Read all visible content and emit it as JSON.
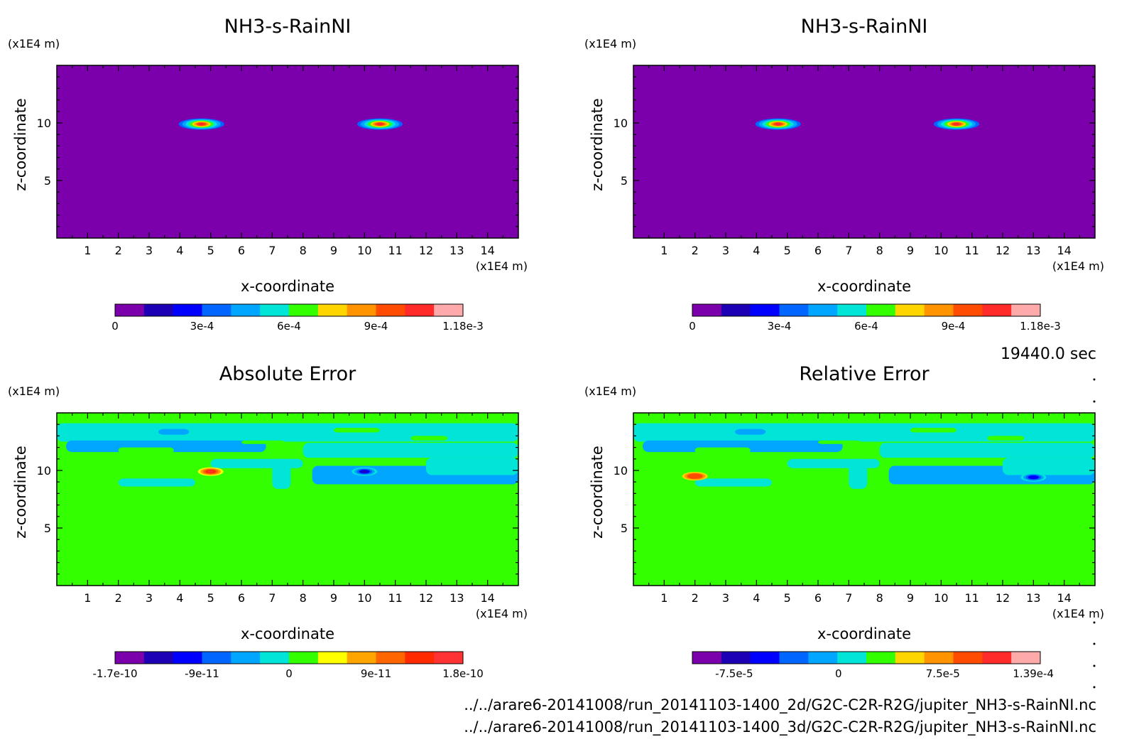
{
  "time_label": "19440.0 sec",
  "file_paths": [
    "../../arare6-20141008/run_20141103-1400_2d/G2C-C2R-R2G/jupiter_NH3-s-RainNI.nc",
    "../../arare6-20141008/run_20141103-1400_3d/G2C-C2R-R2G/jupiter_NH3-s-RainNI.nc"
  ],
  "colors": {
    "seq": [
      "#7b00ac",
      "#1e00b4",
      "#0000ff",
      "#0066ff",
      "#00a6ff",
      "#00e5d8",
      "#33ff00",
      "#ffd500",
      "#ff9400",
      "#ff4c00",
      "#ff2a2a",
      "#ffaaaa"
    ],
    "abs": [
      "#7b00ac",
      "#1e00b4",
      "#0000ff",
      "#0066ff",
      "#00a6ff",
      "#00e5d8",
      "#33ff00",
      "#ffff00",
      "#ffa500",
      "#ff6600",
      "#ff2a00",
      "#ff3333"
    ],
    "rel": [
      "#7b00ac",
      "#1e00b4",
      "#0000ff",
      "#0066ff",
      "#00a6ff",
      "#00e5d8",
      "#33ff00",
      "#ffd500",
      "#ff9400",
      "#ff4c00",
      "#ff2a2a",
      "#ffaaaa"
    ]
  },
  "chart_data": [
    {
      "type": "heatmap",
      "title": "NH3-s-RainNI",
      "xlabel": "x-coordinate",
      "ylabel": "z-coordinate",
      "x_unit": "(x1E4 m)",
      "y_unit": "(x1E4 m)",
      "xlim": [
        0,
        15
      ],
      "ylim": [
        0,
        15
      ],
      "xticks": [
        1,
        2,
        3,
        4,
        5,
        6,
        7,
        8,
        9,
        10,
        11,
        12,
        13,
        14
      ],
      "yticks": [
        5,
        10
      ],
      "colorbar_ticks": [
        "0",
        "3e-4",
        "6e-4",
        "9e-4",
        "1.18e-3"
      ],
      "background_level": 0,
      "features": [
        {
          "x": 4.7,
          "z": 9.9,
          "peak_level": 10
        },
        {
          "x": 10.5,
          "z": 9.9,
          "peak_level": 10
        }
      ]
    },
    {
      "type": "heatmap",
      "title": "NH3-s-RainNI",
      "xlabel": "x-coordinate",
      "ylabel": "z-coordinate",
      "x_unit": "(x1E4 m)",
      "y_unit": "(x1E4 m)",
      "xlim": [
        0,
        15
      ],
      "ylim": [
        0,
        15
      ],
      "xticks": [
        1,
        2,
        3,
        4,
        5,
        6,
        7,
        8,
        9,
        10,
        11,
        12,
        13,
        14
      ],
      "yticks": [
        5,
        10
      ],
      "colorbar_ticks": [
        "0",
        "3e-4",
        "6e-4",
        "9e-4",
        "1.18e-3"
      ],
      "background_level": 0,
      "features": [
        {
          "x": 4.7,
          "z": 9.9,
          "peak_level": 10
        },
        {
          "x": 10.5,
          "z": 9.9,
          "peak_level": 10
        }
      ]
    },
    {
      "type": "heatmap",
      "title": "Absolute Error",
      "xlabel": "x-coordinate",
      "ylabel": "z-coordinate",
      "x_unit": "(x1E4 m)",
      "y_unit": "(x1E4 m)",
      "xlim": [
        0,
        15
      ],
      "ylim": [
        0,
        15
      ],
      "xticks": [
        1,
        2,
        3,
        4,
        5,
        6,
        7,
        8,
        9,
        10,
        11,
        12,
        13,
        14
      ],
      "yticks": [
        5,
        10
      ],
      "colorbar_ticks": [
        "-1.7e-10",
        "-9e-11",
        "0",
        "9e-11",
        "1.8e-10"
      ],
      "background_level": 6,
      "features": [
        {
          "x": 5.0,
          "z": 9.9,
          "peak_level": 11
        },
        {
          "x": 10.0,
          "z": 9.9,
          "peak_level": 1
        }
      ]
    },
    {
      "type": "heatmap",
      "title": "Relative Error",
      "xlabel": "x-coordinate",
      "ylabel": "z-coordinate",
      "x_unit": "(x1E4 m)",
      "y_unit": "(x1E4 m)",
      "xlim": [
        0,
        15
      ],
      "ylim": [
        0,
        15
      ],
      "xticks": [
        1,
        2,
        3,
        4,
        5,
        6,
        7,
        8,
        9,
        10,
        11,
        12,
        13,
        14
      ],
      "yticks": [
        5,
        10
      ],
      "colorbar_ticks": [
        "-7.5e-5",
        "0",
        "7.5e-5",
        "1.39e-4"
      ],
      "background_level": 6,
      "features": [
        {
          "x": 2.0,
          "z": 9.5,
          "peak_level": 9
        },
        {
          "x": 13.0,
          "z": 9.4,
          "peak_level": 2
        }
      ]
    }
  ]
}
